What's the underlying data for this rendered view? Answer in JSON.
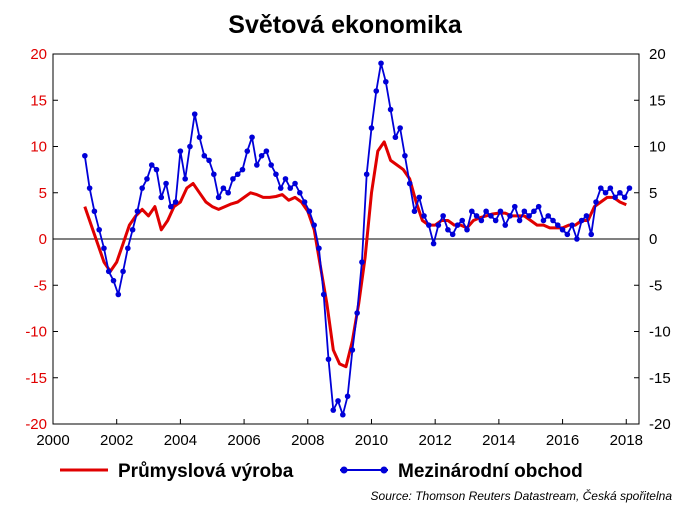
{
  "chart_data": {
    "type": "line",
    "title": "Světová ekonomika",
    "xlim": [
      2000,
      2018.4
    ],
    "ylim": [
      -20,
      20
    ],
    "x_ticks": [
      2000,
      2002,
      2004,
      2006,
      2008,
      2010,
      2012,
      2014,
      2016,
      2018
    ],
    "y_ticks": [
      -20,
      -15,
      -10,
      -5,
      0,
      5,
      10,
      15,
      20
    ],
    "grid": false,
    "legend_position": "bottom",
    "source": "Source: Thomson Reuters Datastream, Česká spořitelna",
    "series": [
      {
        "name": "Průmyslová výroba",
        "color": "#e00000",
        "marker": "none",
        "x": [
          2001.0,
          2001.2,
          2001.4,
          2001.6,
          2001.8,
          2002.0,
          2002.2,
          2002.4,
          2002.6,
          2002.8,
          2003.0,
          2003.2,
          2003.4,
          2003.6,
          2003.8,
          2004.0,
          2004.2,
          2004.4,
          2004.6,
          2004.8,
          2005.0,
          2005.2,
          2005.4,
          2005.6,
          2005.8,
          2006.0,
          2006.2,
          2006.4,
          2006.6,
          2006.8,
          2007.0,
          2007.2,
          2007.4,
          2007.6,
          2007.8,
          2008.0,
          2008.2,
          2008.4,
          2008.6,
          2008.8,
          2009.0,
          2009.2,
          2009.4,
          2009.6,
          2009.8,
          2010.0,
          2010.2,
          2010.4,
          2010.6,
          2010.8,
          2011.0,
          2011.2,
          2011.4,
          2011.6,
          2011.8,
          2012.0,
          2012.2,
          2012.4,
          2012.6,
          2012.8,
          2013.0,
          2013.2,
          2013.4,
          2013.6,
          2013.8,
          2014.0,
          2014.2,
          2014.4,
          2014.6,
          2014.8,
          2015.0,
          2015.2,
          2015.4,
          2015.6,
          2015.8,
          2016.0,
          2016.2,
          2016.4,
          2016.6,
          2016.8,
          2017.0,
          2017.2,
          2017.4,
          2017.6,
          2017.8,
          2018.0
        ],
        "values": [
          3.5,
          1.5,
          -0.5,
          -2.5,
          -3.5,
          -2.5,
          -0.5,
          1.5,
          2.5,
          3.2,
          2.5,
          3.5,
          1.0,
          2.0,
          3.5,
          4.0,
          5.5,
          6.0,
          5.0,
          4.0,
          3.5,
          3.2,
          3.5,
          3.8,
          4.0,
          4.5,
          5.0,
          4.8,
          4.5,
          4.5,
          4.6,
          4.8,
          4.2,
          4.5,
          4.0,
          3.0,
          1.0,
          -3.0,
          -7.0,
          -12.0,
          -13.5,
          -13.8,
          -11.0,
          -7.0,
          -2.0,
          5.0,
          9.5,
          10.5,
          8.5,
          8.0,
          7.5,
          6.5,
          4.0,
          2.0,
          1.5,
          1.5,
          2.0,
          2.0,
          1.5,
          1.5,
          1.2,
          2.0,
          2.3,
          2.5,
          2.7,
          2.8,
          2.8,
          2.5,
          2.5,
          2.5,
          2.0,
          1.5,
          1.5,
          1.2,
          1.2,
          1.2,
          1.5,
          1.5,
          2.0,
          2.0,
          3.5,
          4.0,
          4.5,
          4.5,
          4.0,
          3.7
        ]
      },
      {
        "name": "Mezinárodní obchod",
        "color": "#0000d8",
        "marker": "circle",
        "x": [
          2001.0,
          2001.15,
          2001.3,
          2001.45,
          2001.6,
          2001.75,
          2001.9,
          2002.05,
          2002.2,
          2002.35,
          2002.5,
          2002.65,
          2002.8,
          2002.95,
          2003.1,
          2003.25,
          2003.4,
          2003.55,
          2003.7,
          2003.85,
          2004.0,
          2004.15,
          2004.3,
          2004.45,
          2004.6,
          2004.75,
          2004.9,
          2005.05,
          2005.2,
          2005.35,
          2005.5,
          2005.65,
          2005.8,
          2005.95,
          2006.1,
          2006.25,
          2006.4,
          2006.55,
          2006.7,
          2006.85,
          2007.0,
          2007.15,
          2007.3,
          2007.45,
          2007.6,
          2007.75,
          2007.9,
          2008.05,
          2008.2,
          2008.35,
          2008.5,
          2008.65,
          2008.8,
          2008.95,
          2009.1,
          2009.25,
          2009.4,
          2009.55,
          2009.7,
          2009.85,
          2010.0,
          2010.15,
          2010.3,
          2010.45,
          2010.6,
          2010.75,
          2010.9,
          2011.05,
          2011.2,
          2011.35,
          2011.5,
          2011.65,
          2011.8,
          2011.95,
          2012.1,
          2012.25,
          2012.4,
          2012.55,
          2012.7,
          2012.85,
          2013.0,
          2013.15,
          2013.3,
          2013.45,
          2013.6,
          2013.75,
          2013.9,
          2014.05,
          2014.2,
          2014.35,
          2014.5,
          2014.65,
          2014.8,
          2014.95,
          2015.1,
          2015.25,
          2015.4,
          2015.55,
          2015.7,
          2015.85,
          2016.0,
          2016.15,
          2016.3,
          2016.45,
          2016.6,
          2016.75,
          2016.9,
          2017.05,
          2017.2,
          2017.35,
          2017.5,
          2017.65,
          2017.8,
          2017.95,
          2018.1
        ],
        "values": [
          9.0,
          5.5,
          3.0,
          1.0,
          -1.0,
          -3.5,
          -4.5,
          -6.0,
          -3.5,
          -1.0,
          1.0,
          3.0,
          5.5,
          6.5,
          8.0,
          7.5,
          4.5,
          6.0,
          3.5,
          4.0,
          9.5,
          6.5,
          10.0,
          13.5,
          11.0,
          9.0,
          8.5,
          7.0,
          4.5,
          5.5,
          5.0,
          6.5,
          7.0,
          7.5,
          9.5,
          11.0,
          8.0,
          9.0,
          9.5,
          8.0,
          7.0,
          5.5,
          6.5,
          5.5,
          6.0,
          5.0,
          4.0,
          3.0,
          1.5,
          -1.0,
          -6.0,
          -13.0,
          -18.5,
          -17.5,
          -19.0,
          -17.0,
          -12.0,
          -8.0,
          -2.5,
          7.0,
          12.0,
          16.0,
          19.0,
          17.0,
          14.0,
          11.0,
          12.0,
          9.0,
          6.0,
          3.0,
          4.5,
          2.5,
          1.5,
          -0.5,
          1.5,
          2.5,
          1.0,
          0.5,
          1.5,
          2.0,
          1.0,
          3.0,
          2.5,
          2.0,
          3.0,
          2.5,
          2.0,
          3.0,
          1.5,
          2.5,
          3.5,
          2.0,
          3.0,
          2.5,
          3.0,
          3.5,
          2.0,
          2.5,
          2.0,
          1.5,
          1.0,
          0.5,
          1.5,
          0.0,
          2.0,
          2.5,
          0.5,
          4.0,
          5.5,
          5.0,
          5.5,
          4.5,
          5.0,
          4.5,
          5.5
        ]
      }
    ]
  }
}
